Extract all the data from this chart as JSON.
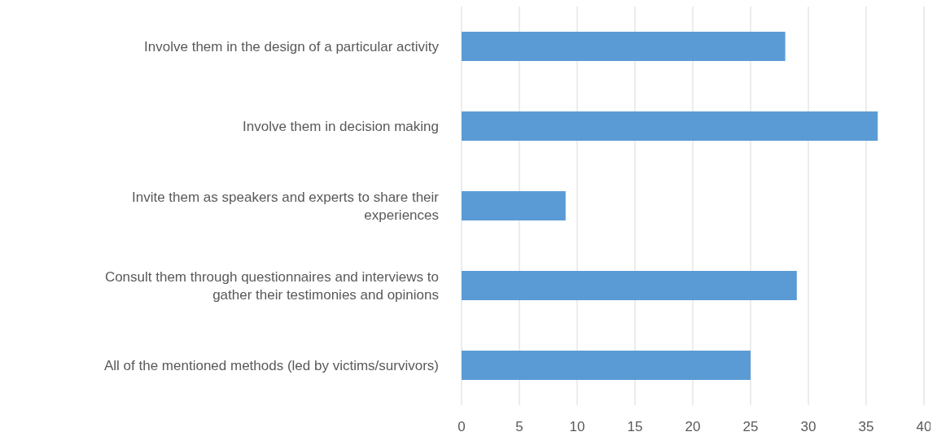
{
  "chart_data": {
    "type": "bar",
    "orientation": "horizontal",
    "categories": [
      "Involve them in the design of a particular activity",
      "Involve them in decision making",
      "Invite them as speakers and experts to share their experiences",
      "Consult them through questionnaires and interviews to gather their testimonies and opinions",
      "All of the mentioned methods (led by victims/survivors)"
    ],
    "values": [
      28,
      36,
      9,
      29,
      25
    ],
    "color": "#5b9bd5",
    "xlim": [
      0,
      40
    ],
    "xticks": [
      0,
      5,
      10,
      15,
      20,
      25,
      30,
      35,
      40
    ],
    "grid": "x"
  }
}
